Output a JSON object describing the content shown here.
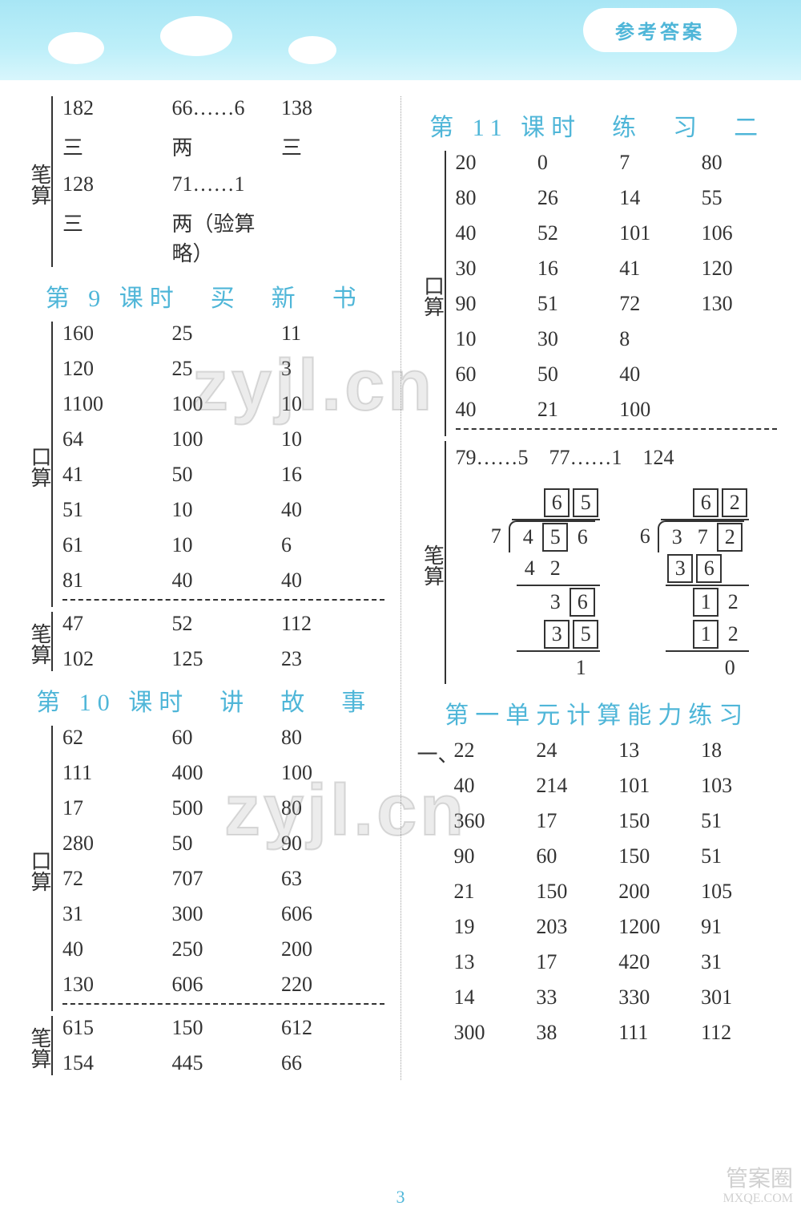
{
  "header": {
    "badge": "参考答案"
  },
  "page_number": "3",
  "watermark_text": "zyjl.cn",
  "corner": {
    "line1": "管案圈",
    "line2": "MXQE.COM"
  },
  "colors": {
    "accent": "#4fb6d8",
    "header_bg_top": "#a8e6f5",
    "header_bg_bottom": "#d8f6fc",
    "text": "#333333"
  },
  "left": {
    "bisuan_top": {
      "label": "笔算",
      "rows": [
        [
          "182",
          "66……6",
          "138"
        ],
        [
          "三",
          "两",
          "三"
        ],
        [
          "128",
          "71……1",
          ""
        ],
        [
          "三",
          "两（验算略）",
          ""
        ]
      ]
    },
    "sec9": {
      "title": "第 9 课时　买　新　书",
      "kousuan": {
        "label": "口算",
        "rows": [
          [
            "160",
            "25",
            "11"
          ],
          [
            "120",
            "25",
            "3"
          ],
          [
            "1100",
            "100",
            "10"
          ],
          [
            "64",
            "100",
            "10"
          ],
          [
            "41",
            "50",
            "16"
          ],
          [
            "51",
            "10",
            "40"
          ],
          [
            "61",
            "10",
            "6"
          ],
          [
            "81",
            "40",
            "40"
          ]
        ]
      },
      "bisuan": {
        "label": "笔算",
        "rows": [
          [
            "47",
            "52",
            "112"
          ],
          [
            "102",
            "125",
            "23"
          ]
        ]
      }
    },
    "sec10": {
      "title": "第 10 课时　讲　故　事",
      "kousuan": {
        "label": "口算",
        "rows": [
          [
            "62",
            "60",
            "80"
          ],
          [
            "111",
            "400",
            "100"
          ],
          [
            "17",
            "500",
            "80"
          ],
          [
            "280",
            "50",
            "90"
          ],
          [
            "72",
            "707",
            "63"
          ],
          [
            "31",
            "300",
            "606"
          ],
          [
            "40",
            "250",
            "200"
          ],
          [
            "130",
            "606",
            "220"
          ]
        ]
      },
      "bisuan": {
        "label": "笔算",
        "rows": [
          [
            "615",
            "150",
            "612"
          ],
          [
            "154",
            "445",
            "66"
          ]
        ]
      }
    }
  },
  "right": {
    "sec11": {
      "title": "第 11 课时　练　习　二",
      "kousuan": {
        "label": "口算",
        "rows": [
          [
            "20",
            "0",
            "7",
            "80"
          ],
          [
            "80",
            "26",
            "14",
            "55"
          ],
          [
            "40",
            "52",
            "101",
            "106"
          ],
          [
            "30",
            "16",
            "41",
            "120"
          ],
          [
            "90",
            "51",
            "72",
            "130"
          ],
          [
            "10",
            "30",
            "8",
            ""
          ],
          [
            "60",
            "50",
            "40",
            ""
          ],
          [
            "40",
            "21",
            "100",
            ""
          ]
        ]
      },
      "bisuan": {
        "label": "笔算",
        "line": "79……5　77……1　124",
        "ld1": {
          "divisor": "7",
          "quotient": [
            "6",
            "5"
          ],
          "dividend": [
            "4",
            "5",
            "6"
          ],
          "dividend_box": [
            false,
            true,
            false
          ],
          "steps": [
            {
              "vals": [
                "4",
                "2",
                ""
              ],
              "box": [
                false,
                false,
                false
              ],
              "underline_after": true
            },
            {
              "vals": [
                "",
                "3",
                "6"
              ],
              "box": [
                false,
                false,
                true
              ],
              "underline_after": false
            },
            {
              "vals": [
                "",
                "3",
                "5"
              ],
              "box": [
                false,
                true,
                true
              ],
              "underline_after": true
            },
            {
              "vals": [
                "",
                "",
                "1"
              ],
              "box": [
                false,
                false,
                false
              ],
              "underline_after": false
            }
          ]
        },
        "ld2": {
          "divisor": "6",
          "quotient": [
            "6",
            "2"
          ],
          "dividend": [
            "3",
            "7",
            "2"
          ],
          "dividend_box": [
            false,
            false,
            true
          ],
          "steps": [
            {
              "vals": [
                "3",
                "6",
                ""
              ],
              "box": [
                true,
                true,
                false
              ],
              "underline_after": true
            },
            {
              "vals": [
                "",
                "1",
                "2"
              ],
              "box": [
                false,
                true,
                false
              ],
              "underline_after": false
            },
            {
              "vals": [
                "",
                "1",
                "2"
              ],
              "box": [
                false,
                true,
                false
              ],
              "underline_after": true
            },
            {
              "vals": [
                "",
                "",
                "0"
              ],
              "box": [
                false,
                false,
                false
              ],
              "underline_after": false
            }
          ]
        }
      }
    },
    "unit1": {
      "title": "第一单元计算能力练习",
      "label": "一、",
      "rows": [
        [
          "22",
          "24",
          "13",
          "18"
        ],
        [
          "40",
          "214",
          "101",
          "103"
        ],
        [
          "360",
          "17",
          "150",
          "51"
        ],
        [
          "90",
          "60",
          "150",
          "51"
        ],
        [
          "21",
          "150",
          "200",
          "105"
        ],
        [
          "19",
          "203",
          "1200",
          "91"
        ],
        [
          "13",
          "17",
          "420",
          "31"
        ],
        [
          "14",
          "33",
          "330",
          "301"
        ],
        [
          "300",
          "38",
          "111",
          "112"
        ]
      ]
    }
  }
}
